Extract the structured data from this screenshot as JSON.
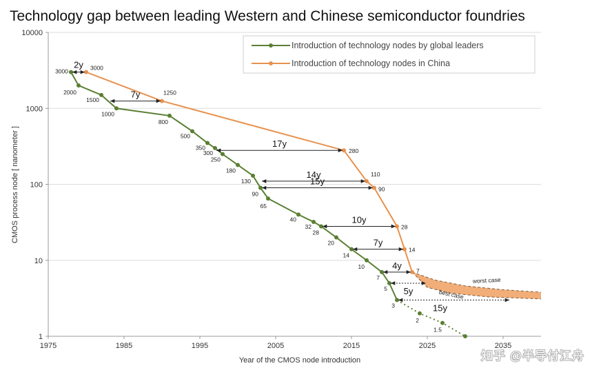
{
  "watermark": "知乎 @半导付江舟",
  "colors": {
    "global": "#5a7f32",
    "china": "#e8914d",
    "band": "#f0a060",
    "axis": "#999999",
    "grid": "#dddddd"
  },
  "chart_data": {
    "type": "line",
    "title": "Technology gap between leading Western and Chinese semiconductor foundries",
    "xlabel": "Year of the CMOS node introduction",
    "ylabel": "CMOS process node [ nanometer ]",
    "xlim": [
      1975,
      2040
    ],
    "ylim": [
      1,
      10000
    ],
    "yscale": "log",
    "xticks": [
      1975,
      1985,
      1995,
      2005,
      2015,
      2025,
      2035
    ],
    "yticks": [
      1,
      10,
      100,
      1000,
      10000
    ],
    "ytick_labels": [
      "1",
      "10",
      "100",
      "1000",
      "10000"
    ],
    "legend": {
      "position": "top-right",
      "entries": [
        "Introduction of technology nodes by global leaders",
        "Introduction of technology nodes in China"
      ]
    },
    "series": [
      {
        "name": "Introduction of technology nodes by global leaders",
        "color": "#5a7f32",
        "points": [
          {
            "x": 1978,
            "y": 3000,
            "label": "3000"
          },
          {
            "x": 1979,
            "y": 2000,
            "label": "2000"
          },
          {
            "x": 1982,
            "y": 1500,
            "label": "1500"
          },
          {
            "x": 1984,
            "y": 1000,
            "label": "1000"
          },
          {
            "x": 1991,
            "y": 800,
            "label": "800"
          },
          {
            "x": 1994,
            "y": 500,
            "label": "500"
          },
          {
            "x": 1996,
            "y": 350,
            "label": "350"
          },
          {
            "x": 1997,
            "y": 300,
            "label": "300"
          },
          {
            "x": 1998,
            "y": 250,
            "label": "250"
          },
          {
            "x": 2000,
            "y": 180,
            "label": "180"
          },
          {
            "x": 2002,
            "y": 130,
            "label": "130"
          },
          {
            "x": 2003,
            "y": 90,
            "label": "90"
          },
          {
            "x": 2004,
            "y": 65,
            "label": "65"
          },
          {
            "x": 2008,
            "y": 40,
            "label": "40"
          },
          {
            "x": 2010,
            "y": 32,
            "label": "32"
          },
          {
            "x": 2011,
            "y": 28,
            "label": "28"
          },
          {
            "x": 2013,
            "y": 20,
            "label": "20"
          },
          {
            "x": 2015,
            "y": 14,
            "label": "14"
          },
          {
            "x": 2017,
            "y": 10,
            "label": "10"
          },
          {
            "x": 2019,
            "y": 7,
            "label": "7"
          },
          {
            "x": 2020,
            "y": 5,
            "label": "5"
          },
          {
            "x": 2021,
            "y": 3,
            "label": "3"
          }
        ],
        "projection": [
          {
            "x": 2021,
            "y": 3
          },
          {
            "x": 2024,
            "y": 2,
            "label": "2"
          },
          {
            "x": 2027,
            "y": 1.5,
            "label": "1.5"
          },
          {
            "x": 2030,
            "y": 1
          }
        ]
      },
      {
        "name": "Introduction of technology nodes in China",
        "color": "#e8914d",
        "points": [
          {
            "x": 1980,
            "y": 3000,
            "label": "3000"
          },
          {
            "x": 1990,
            "y": 1250,
            "label": "1250"
          },
          {
            "x": 2014,
            "y": 280,
            "label": "280"
          },
          {
            "x": 2017,
            "y": 110,
            "label": "110"
          },
          {
            "x": 2018,
            "y": 90,
            "label": "90"
          },
          {
            "x": 2021,
            "y": 28,
            "label": "28"
          },
          {
            "x": 2022,
            "y": 14,
            "label": "14"
          },
          {
            "x": 2023,
            "y": 7,
            "label": "7"
          }
        ]
      }
    ],
    "scenarios": {
      "worst_case": {
        "label": "worst case",
        "points": [
          {
            "x": 2023,
            "y": 7
          },
          {
            "x": 2026,
            "y": 5.5
          },
          {
            "x": 2030,
            "y": 4.6
          },
          {
            "x": 2035,
            "y": 4.1
          },
          {
            "x": 2040,
            "y": 3.8
          }
        ]
      },
      "best_case": {
        "label": "best case",
        "points": [
          {
            "x": 2023,
            "y": 7
          },
          {
            "x": 2025,
            "y": 4.4
          },
          {
            "x": 2028,
            "y": 3.7
          },
          {
            "x": 2033,
            "y": 3.3
          },
          {
            "x": 2040,
            "y": 3.1
          }
        ]
      }
    },
    "gaps": [
      {
        "label": "2y",
        "x1": 1978,
        "x2": 1980,
        "y": 3000
      },
      {
        "label": "7y",
        "x1": 1983,
        "x2": 1990,
        "y": 1250
      },
      {
        "label": "17y",
        "x1": 1997,
        "x2": 2014,
        "y": 280
      },
      {
        "label": "14y",
        "x1": 2003,
        "x2": 2017,
        "y": 110
      },
      {
        "label": "15y",
        "x1": 2003,
        "x2": 2018,
        "y": 90
      },
      {
        "label": "10y",
        "x1": 2011,
        "x2": 2021,
        "y": 28
      },
      {
        "label": "7y",
        "x1": 2015,
        "x2": 2022,
        "y": 14
      },
      {
        "label": "4y",
        "x1": 2019,
        "x2": 2023,
        "y": 7
      },
      {
        "label": "5y",
        "x1": 2020,
        "x2": 2025,
        "y": 5
      },
      {
        "label": "15y",
        "x1": 2021,
        "x2": 2036,
        "y": 3
      }
    ]
  }
}
